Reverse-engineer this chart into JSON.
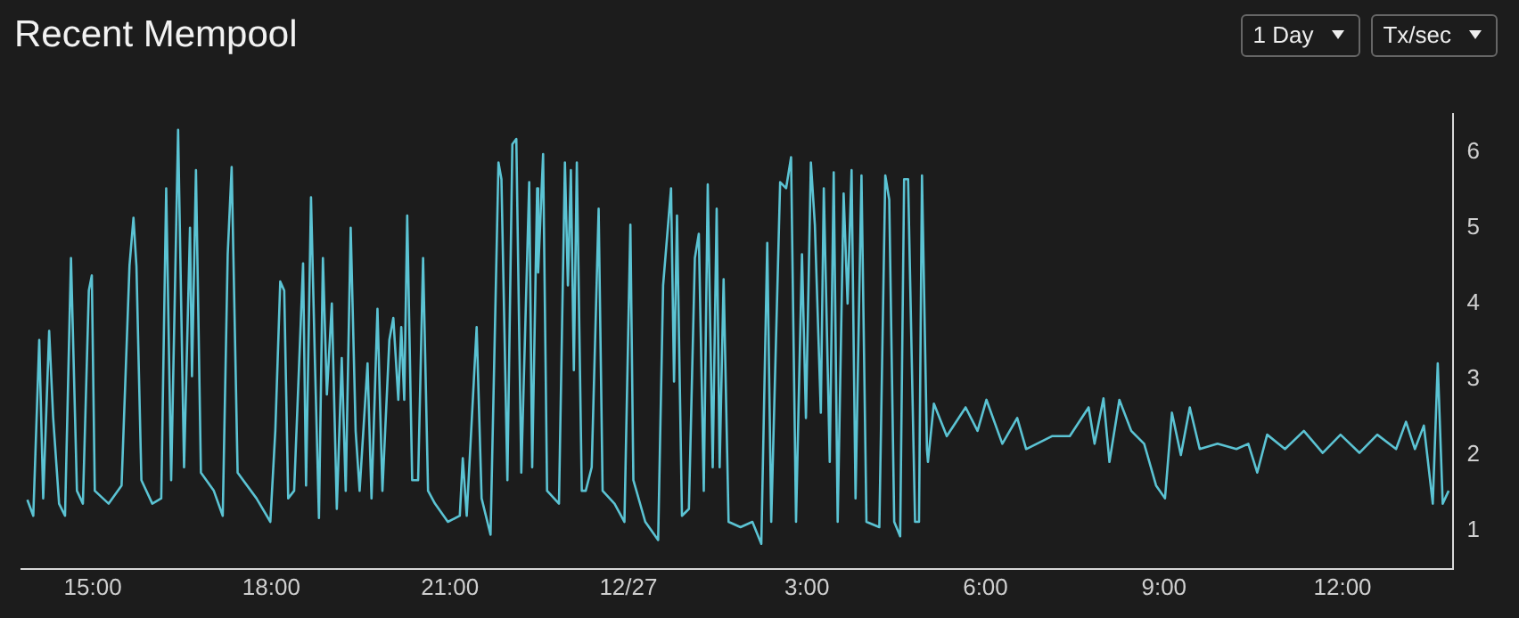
{
  "chart_data": {
    "type": "line",
    "title": "Recent Mempool",
    "annotations": [
      "1 Day",
      "Tx/sec"
    ],
    "marker": "none",
    "line_style": "solid",
    "xlim": [
      "--12-26T13:48",
      "--12-27T13:51"
    ],
    "xticks": [
      {
        "value": "--12-26T15:00",
        "label": "15:00"
      },
      {
        "value": "--12-26T18:00",
        "label": "18:00"
      },
      {
        "value": "--12-26T21:00",
        "label": "21:00"
      },
      {
        "value": "--12-27T00:00",
        "label": "12/27"
      },
      {
        "value": "--12-27T03:00",
        "label": "3:00"
      },
      {
        "value": "--12-27T06:00",
        "label": "6:00"
      },
      {
        "value": "--12-27T09:00",
        "label": "9:00"
      },
      {
        "value": "--12-27T12:00",
        "label": "12:00"
      }
    ],
    "ylim": [
      0.5,
      6.5
    ],
    "yticks": [
      1,
      2,
      3,
      4,
      5,
      6
    ],
    "x": [
      "--12-26T13:54",
      "--12-26T14:00",
      "--12-26T14:06",
      "--12-26T14:10",
      "--12-26T14:16",
      "--12-26T14:20",
      "--12-26T14:26",
      "--12-26T14:32",
      "--12-26T14:38",
      "--12-26T14:44",
      "--12-26T14:50",
      "--12-26T14:56",
      "--12-26T14:59",
      "--12-26T15:02",
      "--12-26T15:16",
      "--12-26T15:29",
      "--12-26T15:37",
      "--12-26T15:41",
      "--12-26T15:44",
      "--12-26T15:49",
      "--12-26T16:00",
      "--12-26T16:09",
      "--12-26T16:14",
      "--12-26T16:19",
      "--12-26T16:26",
      "--12-26T16:32",
      "--12-26T16:38",
      "--12-26T16:40",
      "--12-26T16:44",
      "--12-26T16:49",
      "--12-26T17:02",
      "--12-26T17:11",
      "--12-26T17:16",
      "--12-26T17:20",
      "--12-26T17:26",
      "--12-26T17:45",
      "--12-26T17:59",
      "--12-26T18:04",
      "--12-26T18:09",
      "--12-26T18:13",
      "--12-26T18:17",
      "--12-26T18:23",
      "--12-26T18:32",
      "--12-26T18:35",
      "--12-26T18:40",
      "--12-26T18:44",
      "--12-26T18:48",
      "--12-26T18:52",
      "--12-26T18:56",
      "--12-26T19:01",
      "--12-26T19:06",
      "--12-26T19:11",
      "--12-26T19:15",
      "--12-26T19:20",
      "--12-26T19:25",
      "--12-26T19:29",
      "--12-26T19:37",
      "--12-26T19:41",
      "--12-26T19:47",
      "--12-26T19:52",
      "--12-26T19:59",
      "--12-26T20:03",
      "--12-26T20:08",
      "--12-26T20:11",
      "--12-26T20:14",
      "--12-26T20:17",
      "--12-26T20:22",
      "--12-26T20:28",
      "--12-26T20:33",
      "--12-26T20:38",
      "--12-26T20:45",
      "--12-26T20:58",
      "--12-26T21:10",
      "--12-26T21:13",
      "--12-26T21:17",
      "--12-26T21:27",
      "--12-26T21:32",
      "--12-26T21:41",
      "--12-26T21:49",
      "--12-26T21:52",
      "--12-26T21:58",
      "--12-26T22:03",
      "--12-26T22:07",
      "--12-26T22:12",
      "--12-26T22:20",
      "--12-26T22:23",
      "--12-26T22:28",
      "--12-26T22:29",
      "--12-26T22:34",
      "--12-26T22:38",
      "--12-26T22:50",
      "--12-26T22:56",
      "--12-26T22:59",
      "--12-26T23:02",
      "--12-26T23:05",
      "--12-26T23:08",
      "--12-26T23:13",
      "--12-26T23:17",
      "--12-26T23:23",
      "--12-26T23:30",
      "--12-26T23:34",
      "--12-26T23:46",
      "--12-26T23:56",
      "--12-27T00:02",
      "--12-27T00:05",
      "--12-27T00:17",
      "--12-27T00:30",
      "--12-27T00:35",
      "--12-27T00:43",
      "--12-27T00:46",
      "--12-27T00:49",
      "--12-27T00:54",
      "--12-27T01:01",
      "--12-27T01:07",
      "--12-27T01:11",
      "--12-27T01:16",
      "--12-27T01:20",
      "--12-27T01:25",
      "--12-27T01:29",
      "--12-27T01:32",
      "--12-27T01:36",
      "--12-27T01:41",
      "--12-27T01:53",
      "--12-27T02:05",
      "--12-27T02:14",
      "--12-27T02:20",
      "--12-27T02:24",
      "--12-27T02:33",
      "--12-27T02:39",
      "--12-27T02:44",
      "--12-27T02:49",
      "--12-27T02:55",
      "--12-27T02:59",
      "--12-27T03:04",
      "--12-27T03:08",
      "--12-27T03:14",
      "--12-27T03:17",
      "--12-27T03:23",
      "--12-27T03:27",
      "--12-27T03:31",
      "--12-27T03:37",
      "--12-27T03:41",
      "--12-27T03:45",
      "--12-27T03:49",
      "--12-27T03:55",
      "--12-27T04:00",
      "--12-27T04:13",
      "--12-27T04:19",
      "--12-27T04:23",
      "--12-27T04:28",
      "--12-27T04:34",
      "--12-27T04:38",
      "--12-27T04:42",
      "--12-27T04:49",
      "--12-27T04:53",
      "--12-27T04:56",
      "--12-27T05:01",
      "--12-27T05:02",
      "--12-27T05:08",
      "--12-27T05:21",
      "--12-27T05:40",
      "--12-27T05:52",
      "--12-27T06:01",
      "--12-27T06:17",
      "--12-27T06:32",
      "--12-27T06:41",
      "--12-27T07:07",
      "--12-27T07:25",
      "--12-27T07:44",
      "--12-27T07:50",
      "--12-27T07:59",
      "--12-27T08:05",
      "--12-27T08:15",
      "--12-27T08:27",
      "--12-27T08:40",
      "--12-27T08:52",
      "--12-27T09:01",
      "--12-27T09:08",
      "--12-27T09:17",
      "--12-27T09:26",
      "--12-27T09:36",
      "--12-27T09:54",
      "--12-27T10:13",
      "--12-27T10:25",
      "--12-27T10:34",
      "--12-27T10:44",
      "--12-27T11:02",
      "--12-27T11:21",
      "--12-27T11:40",
      "--12-27T11:58",
      "--12-27T12:17",
      "--12-27T12:35",
      "--12-27T12:54",
      "--12-27T13:04",
      "--12-27T13:13",
      "--12-27T13:22",
      "--12-27T13:31",
      "--12-27T13:36",
      "--12-27T13:41",
      "--12-27T13:47"
    ],
    "series": [
      {
        "color": "#5bc3d3",
        "values": [
          1.41,
          1.2,
          3.52,
          1.43,
          3.64,
          2.5,
          1.36,
          1.2,
          4.6,
          1.53,
          1.36,
          4.17,
          4.37,
          1.53,
          1.36,
          1.6,
          4.5,
          5.13,
          4.49,
          1.67,
          1.36,
          1.43,
          5.52,
          1.67,
          6.29,
          1.84,
          5.0,
          3.04,
          5.76,
          1.77,
          1.53,
          1.2,
          4.65,
          5.8,
          1.77,
          1.43,
          1.12,
          2.32,
          4.29,
          4.17,
          1.43,
          1.53,
          4.53,
          1.6,
          5.4,
          3.21,
          1.17,
          4.6,
          2.8,
          4.0,
          1.29,
          3.28,
          1.53,
          5.0,
          2.32,
          1.53,
          3.21,
          1.43,
          3.93,
          1.53,
          3.52,
          3.81,
          2.73,
          3.69,
          2.73,
          5.16,
          1.67,
          1.67,
          4.6,
          1.53,
          1.36,
          1.12,
          1.2,
          1.96,
          1.2,
          3.69,
          1.43,
          0.95,
          5.86,
          5.64,
          1.67,
          6.1,
          6.17,
          1.77,
          5.6,
          1.84,
          5.52,
          4.41,
          5.97,
          1.53,
          1.36,
          5.86,
          4.24,
          5.76,
          3.12,
          5.86,
          1.53,
          1.53,
          1.84,
          5.25,
          1.53,
          1.36,
          1.12,
          5.04,
          1.67,
          1.12,
          0.88,
          4.24,
          5.52,
          2.97,
          5.16,
          1.2,
          1.29,
          4.6,
          4.92,
          1.53,
          5.57,
          1.84,
          5.25,
          1.84,
          4.32,
          1.12,
          1.05,
          1.12,
          0.83,
          4.8,
          1.12,
          5.6,
          5.52,
          5.93,
          1.12,
          4.65,
          2.49,
          5.86,
          5.04,
          2.56,
          5.52,
          1.91,
          5.73,
          1.12,
          5.45,
          4.0,
          5.76,
          1.43,
          5.69,
          1.12,
          1.05,
          5.69,
          5.37,
          1.12,
          0.93,
          5.64,
          5.64,
          1.12,
          1.12,
          5.69,
          2.08,
          1.91,
          2.68,
          2.25,
          2.63,
          2.32,
          2.73,
          2.15,
          2.49,
          2.08,
          2.25,
          2.25,
          2.63,
          2.15,
          2.75,
          1.91,
          2.73,
          2.32,
          2.15,
          1.6,
          1.43,
          2.56,
          2.0,
          2.63,
          2.08,
          2.15,
          2.08,
          2.15,
          1.77,
          2.27,
          2.08,
          2.32,
          2.03,
          2.27,
          2.03,
          2.27,
          2.08,
          2.44,
          2.08,
          2.39,
          1.36,
          3.21,
          1.36,
          1.53
        ]
      }
    ]
  }
}
